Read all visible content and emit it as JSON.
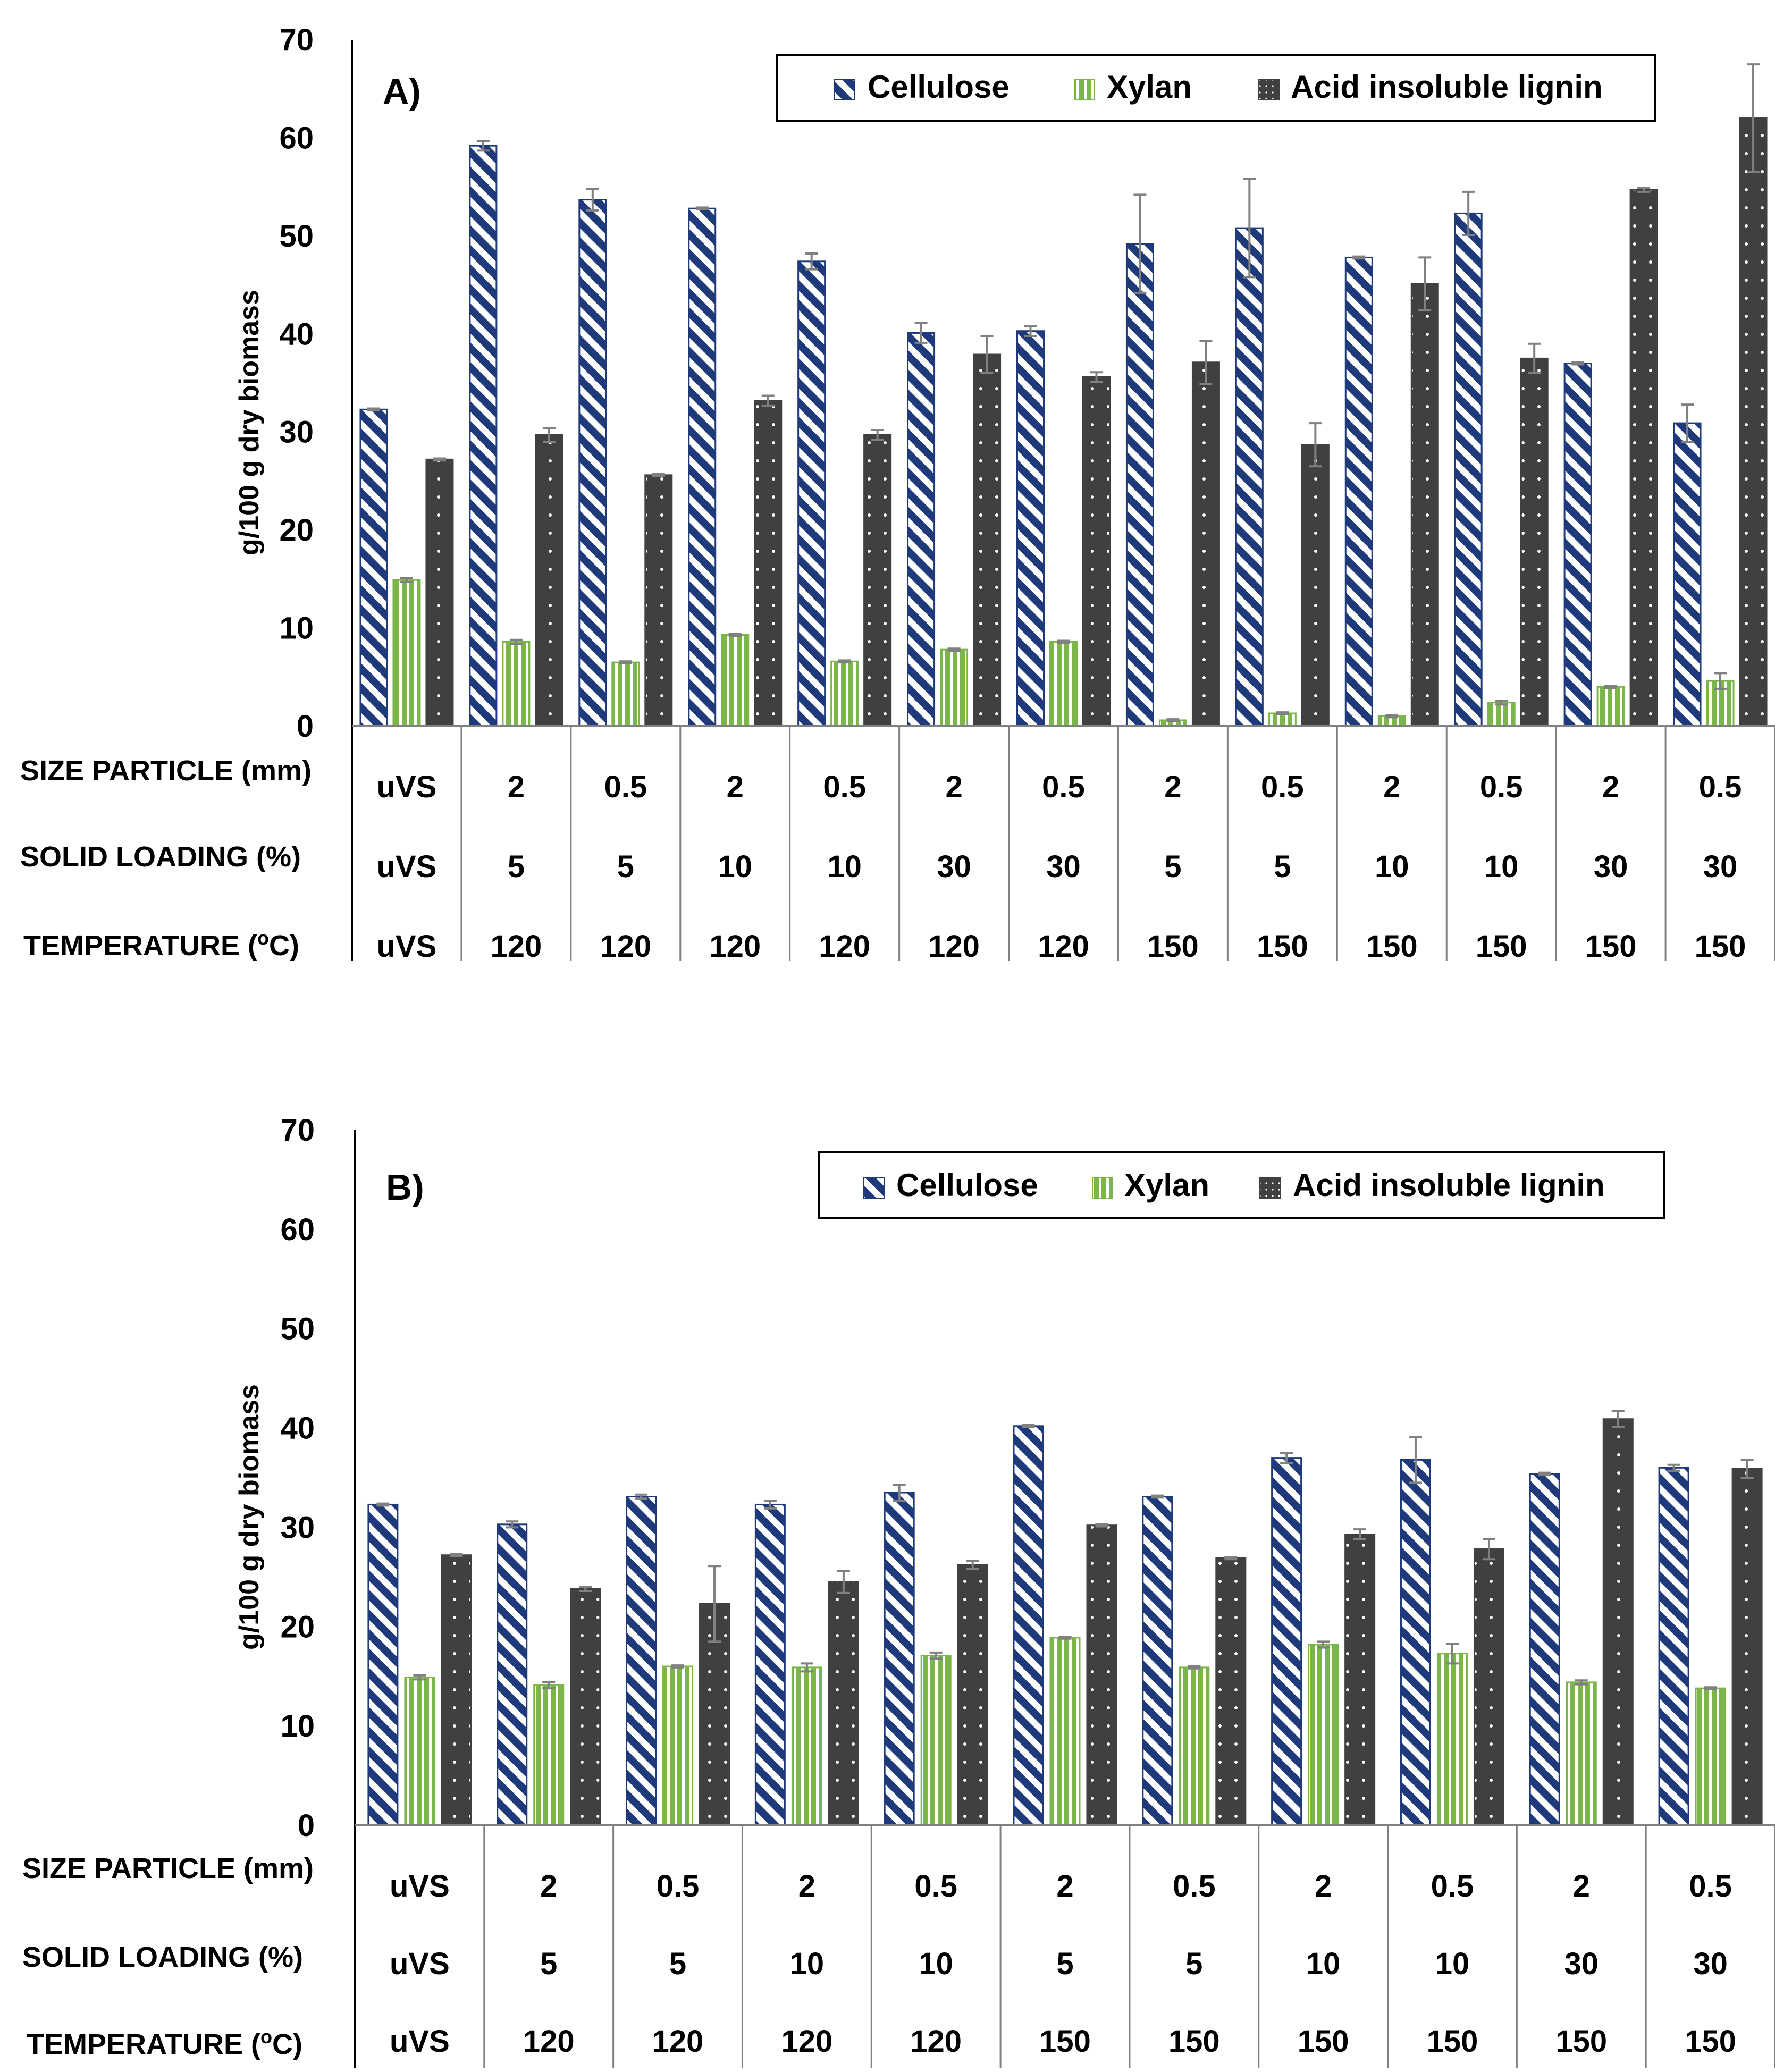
{
  "legend": {
    "cellulose": "Cellulose",
    "xylan": "Xylan",
    "lignin": "Acid insoluble lignin"
  },
  "colors": {
    "cellulose": "#1f3a7a",
    "xylan": "#7ab648",
    "lignin": "#404040",
    "axis": "#000000",
    "error_bar": "#808080",
    "grid_line": "#808080"
  },
  "row_labels": {
    "size": "SIZE PARTICLE (mm)",
    "solid": "SOLID LOADING (%)",
    "temp_prefix": "TEMPERATURE (",
    "temp_sup": "o",
    "temp_suffix": "C)"
  },
  "chart_data": [
    {
      "type": "bar",
      "title": "A)",
      "ylabel": "g/100 g dry biomass",
      "ylim": [
        0,
        70
      ],
      "yticks": [
        0,
        10,
        20,
        30,
        40,
        50,
        60,
        70
      ],
      "legend_position": "top-right",
      "rows": {
        "size_particle_mm": [
          "uVS",
          "2",
          "0.5",
          "2",
          "0.5",
          "2",
          "0.5",
          "2",
          "0.5",
          "2",
          "0.5",
          "2",
          "0.5"
        ],
        "solid_loading_pct": [
          "uVS",
          "5",
          "5",
          "10",
          "10",
          "30",
          "30",
          "5",
          "5",
          "10",
          "10",
          "30",
          "30"
        ],
        "temperature_c": [
          "uVS",
          "120",
          "120",
          "120",
          "120",
          "120",
          "120",
          "150",
          "150",
          "150",
          "150",
          "150",
          "150"
        ]
      },
      "series": [
        {
          "name": "Cellulose",
          "values": [
            32.3,
            59.2,
            53.7,
            52.8,
            47.4,
            40.1,
            40.3,
            49.2,
            50.8,
            47.8,
            52.3,
            37.0,
            30.9
          ],
          "errors": [
            0.1,
            0.5,
            1.1,
            0.1,
            0.8,
            1.0,
            0.5,
            5.0,
            5.0,
            0.1,
            2.2,
            0.1,
            1.9
          ]
        },
        {
          "name": "Xylan",
          "values": [
            14.9,
            8.6,
            6.5,
            9.3,
            6.6,
            7.8,
            8.6,
            0.6,
            1.3,
            1.0,
            2.4,
            4.0,
            4.6
          ],
          "errors": [
            0.2,
            0.2,
            0.1,
            0.1,
            0.1,
            0.1,
            0.1,
            0.1,
            0.1,
            0.1,
            0.2,
            0.1,
            0.8
          ]
        },
        {
          "name": "Acid insoluble lignin",
          "values": [
            27.2,
            29.7,
            25.6,
            33.2,
            29.7,
            37.9,
            35.6,
            37.1,
            28.7,
            45.1,
            37.5,
            54.7,
            62.0
          ],
          "errors": [
            0.1,
            0.7,
            0.1,
            0.5,
            0.5,
            1.9,
            0.5,
            2.2,
            2.2,
            2.7,
            1.5,
            0.2,
            5.5
          ]
        }
      ]
    },
    {
      "type": "bar",
      "title": "B)",
      "ylabel": "g/100 g dry biomass",
      "ylim": [
        0,
        70
      ],
      "yticks": [
        0,
        10,
        20,
        30,
        40,
        50,
        60,
        70
      ],
      "legend_position": "top-right",
      "rows": {
        "size_particle_mm": [
          "uVS",
          "2",
          "0.5",
          "2",
          "0.5",
          "2",
          "0.5",
          "2",
          "0.5",
          "2",
          "0.5"
        ],
        "solid_loading_pct": [
          "uVS",
          "5",
          "5",
          "10",
          "10",
          "5",
          "5",
          "10",
          "10",
          "30",
          "30"
        ],
        "temperature_c": [
          "uVS",
          "120",
          "120",
          "120",
          "120",
          "150",
          "150",
          "150",
          "150",
          "150",
          "150"
        ]
      },
      "series": [
        {
          "name": "Cellulose",
          "values": [
            32.3,
            30.3,
            33.1,
            32.3,
            33.5,
            40.2,
            33.1,
            37.0,
            36.8,
            35.4,
            36.0
          ],
          "errors": [
            0.1,
            0.3,
            0.2,
            0.4,
            0.8,
            0.1,
            0.1,
            0.5,
            2.3,
            0.1,
            0.3
          ]
        },
        {
          "name": "Xylan",
          "values": [
            14.9,
            14.1,
            16.0,
            15.9,
            17.1,
            18.9,
            15.9,
            18.2,
            17.3,
            14.4,
            13.8
          ],
          "errors": [
            0.2,
            0.3,
            0.1,
            0.4,
            0.3,
            0.1,
            0.1,
            0.3,
            1.0,
            0.2,
            0.1
          ]
        },
        {
          "name": "Acid insoluble lignin",
          "values": [
            27.2,
            23.8,
            22.3,
            24.5,
            26.2,
            30.2,
            26.9,
            29.3,
            27.8,
            40.9,
            35.9
          ],
          "errors": [
            0.1,
            0.2,
            3.8,
            1.1,
            0.4,
            0.1,
            0.1,
            0.5,
            1.0,
            0.8,
            0.9
          ]
        }
      ]
    }
  ]
}
